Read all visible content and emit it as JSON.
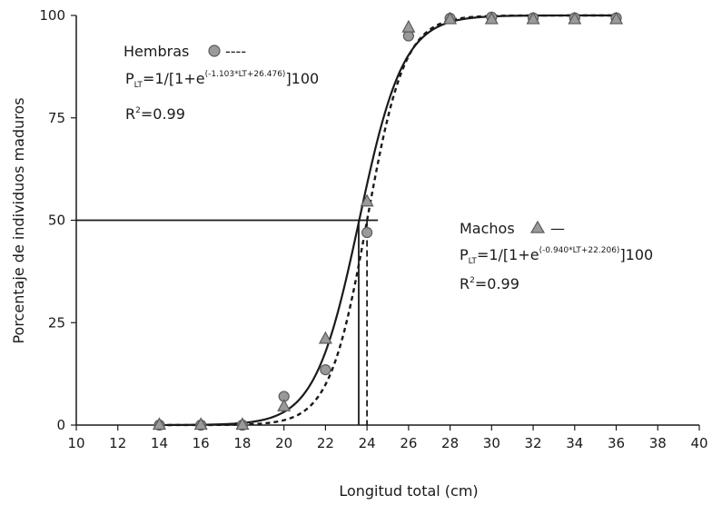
{
  "chart_data": {
    "type": "scatter",
    "xlabel": "Longitud total (cm)",
    "ylabel": "Porcentaje de individuos maduros",
    "xlim": [
      10,
      40
    ],
    "ylim": [
      0,
      100
    ],
    "x_ticks": [
      "10",
      "12",
      "14",
      "16",
      "18",
      "20",
      "22",
      "24",
      "26",
      "28",
      "30",
      "32",
      "34",
      "36",
      "38",
      "40"
    ],
    "y_ticks": [
      "0",
      "25",
      "50",
      "75",
      "100"
    ],
    "grid": false,
    "series": [
      {
        "name": "Hembras",
        "marker": "circle",
        "line_style": "dashed",
        "x": [
          14,
          16,
          18,
          20,
          22,
          24,
          26,
          28,
          30,
          32,
          34,
          36
        ],
        "y": [
          0,
          0,
          0,
          7,
          13.5,
          47,
          95,
          99.3,
          99.6,
          99.4,
          99.4,
          99.4
        ],
        "logistic": {
          "a": -1.103,
          "b": 26.476
        }
      },
      {
        "name": "Machos",
        "marker": "triangle",
        "line_style": "solid",
        "x": [
          14,
          16,
          18,
          20,
          22,
          24,
          26,
          28,
          30,
          32,
          34,
          36
        ],
        "y": [
          0,
          0,
          0,
          4.5,
          21,
          54.5,
          97,
          99,
          99,
          99,
          99,
          99
        ],
        "logistic": {
          "a": -0.94,
          "b": 22.206
        }
      }
    ],
    "reference_lines": {
      "horizontal_y": 50,
      "vertical_x_machos": 23.6,
      "vertical_x_hembras": 24.0
    },
    "annotations": {
      "hembras": {
        "label": "Hembras",
        "legend_dash": "----",
        "eq_prefix": "P",
        "eq_sub": "LT",
        "eq_mid": "=1/[1+e",
        "eq_exp": "(-1.103*LT+26.476)",
        "eq_end": "]100",
        "r2_prefix": "R",
        "r2_sup": "2",
        "r2_value": "=0.99"
      },
      "machos": {
        "label": "Machos",
        "legend_dash": "—",
        "eq_prefix": "P",
        "eq_sub": "LT",
        "eq_mid": "=1/[1+e",
        "eq_exp": "(-0.940*LT+22.206)",
        "eq_end": "]100",
        "r2_prefix": "R",
        "r2_sup": "2",
        "r2_value": "=0.99"
      }
    },
    "colors": {
      "marker_fill": "#9a9a9a",
      "marker_stroke": "#5a5a5a",
      "line": "#1a1a1a"
    }
  }
}
